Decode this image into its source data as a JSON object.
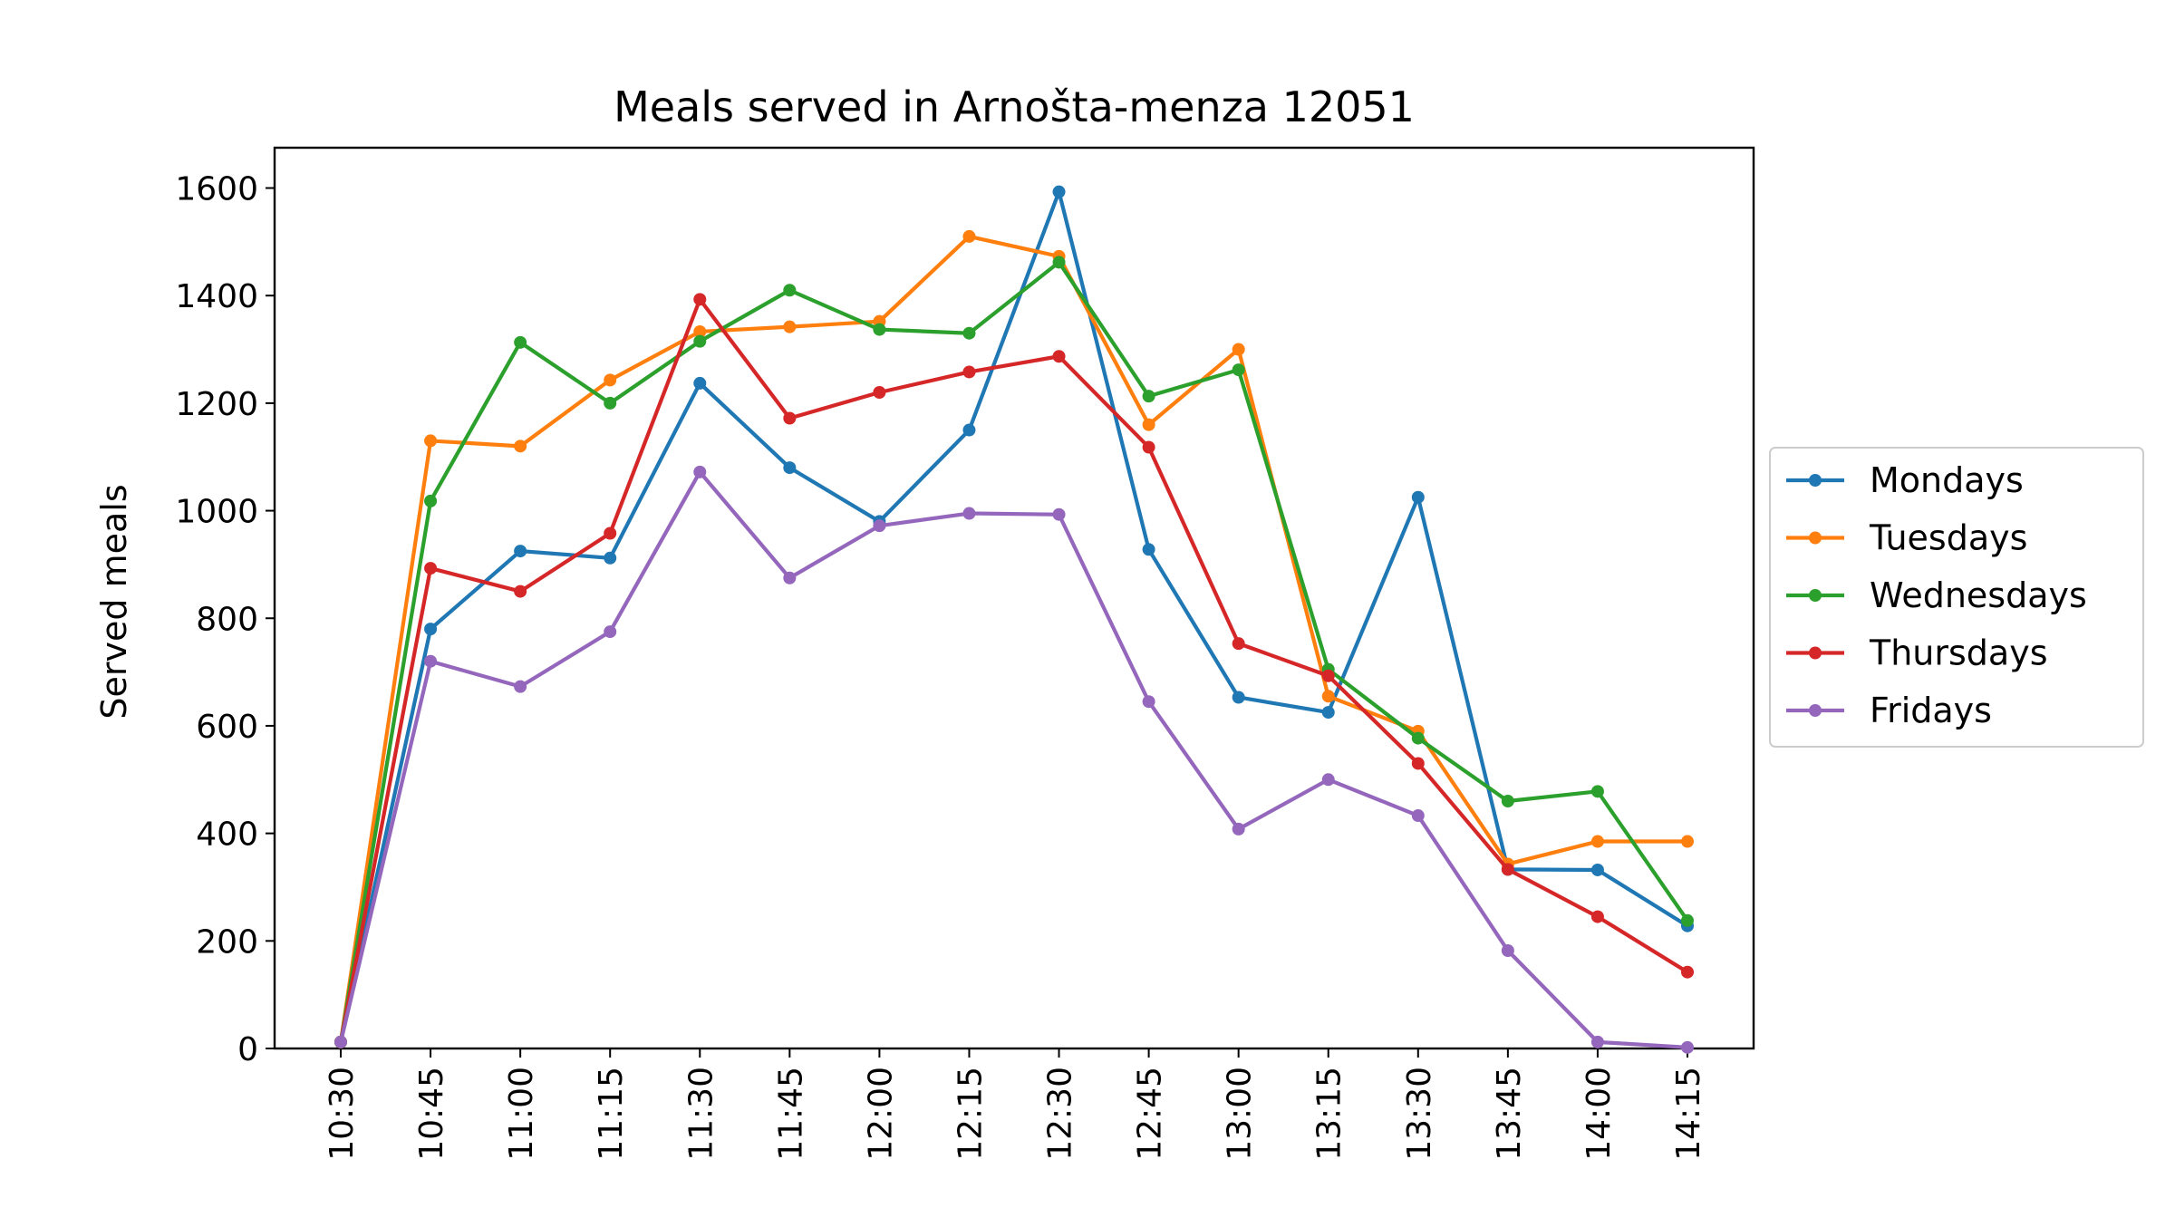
{
  "chart_data": {
    "type": "line",
    "title": "Meals served in Arnošta-menza 12051",
    "xlabel": "",
    "ylabel": "Served meals",
    "categories": [
      "10:30",
      "10:45",
      "11:00",
      "11:15",
      "11:30",
      "11:45",
      "12:00",
      "12:15",
      "12:30",
      "12:45",
      "13:00",
      "13:15",
      "13:30",
      "13:45",
      "14:00",
      "14:15"
    ],
    "yticks": [
      0,
      200,
      400,
      600,
      800,
      1000,
      1200,
      1400,
      1600
    ],
    "ylim": [
      0,
      1675
    ],
    "grid": false,
    "legend": "center-right-outside",
    "series": [
      {
        "name": "Mondays",
        "color": "#1f77b4",
        "values": [
          12,
          780,
          925,
          912,
          1237,
          1080,
          980,
          1150,
          1593,
          928,
          653,
          625,
          1025,
          333,
          332,
          228
        ]
      },
      {
        "name": "Tuesdays",
        "color": "#ff7f0e",
        "values": [
          12,
          1130,
          1120,
          1243,
          1333,
          1342,
          1352,
          1510,
          1473,
          1160,
          1300,
          655,
          590,
          343,
          385,
          385
        ]
      },
      {
        "name": "Wednesdays",
        "color": "#2ca02c",
        "values": [
          12,
          1018,
          1313,
          1200,
          1315,
          1410,
          1337,
          1330,
          1462,
          1213,
          1262,
          705,
          577,
          460,
          478,
          238
        ]
      },
      {
        "name": "Thursdays",
        "color": "#d62728",
        "values": [
          12,
          893,
          850,
          958,
          1393,
          1172,
          1220,
          1258,
          1287,
          1118,
          753,
          693,
          530,
          333,
          245,
          142
        ]
      },
      {
        "name": "Fridays",
        "color": "#9467bd",
        "values": [
          12,
          720,
          673,
          775,
          1072,
          875,
          972,
          995,
          993,
          645,
          408,
          500,
          433,
          182,
          12,
          2
        ]
      }
    ]
  }
}
